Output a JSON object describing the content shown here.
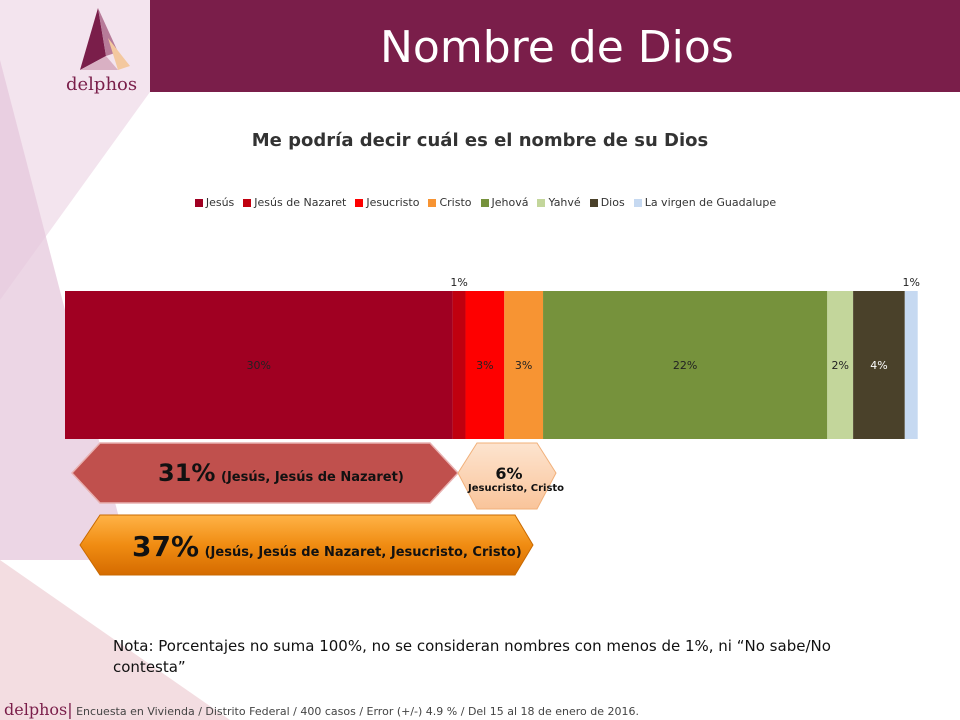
{
  "header": {
    "title": "Nombre de Dios",
    "logo": "delphos"
  },
  "chart_data": {
    "type": "bar",
    "orientation": "horizontal-stacked",
    "title": "Me podría decir cuál es el nombre de su Dios",
    "legend_position": "top",
    "series": [
      {
        "name": "Jesús",
        "value": 30,
        "label": "30%",
        "color": "#a00022"
      },
      {
        "name": "Jesús de Nazaret",
        "value": 1,
        "label": "1%",
        "color": "#c0000f"
      },
      {
        "name": "Jesucristo",
        "value": 3,
        "label": "3%",
        "color": "#fe0000"
      },
      {
        "name": "Cristo",
        "value": 3,
        "label": "3%",
        "color": "#f79433"
      },
      {
        "name": "Jehová",
        "value": 22,
        "label": "22%",
        "color": "#76923c"
      },
      {
        "name": "Yahvé",
        "value": 2,
        "label": "2%",
        "color": "#c3d69b"
      },
      {
        "name": "Dios",
        "value": 4,
        "label": "4%",
        "color": "#4a412a"
      },
      {
        "name": "La virgen de Guadalupe",
        "value": 1,
        "label": "1%",
        "color": "#c6d9f1"
      }
    ]
  },
  "callouts": {
    "group1": {
      "pct": "31%",
      "detail": "(Jesús, Jesús de Nazaret)"
    },
    "group2": {
      "pct": "6%",
      "detail": "Jesucristo, Cristo"
    },
    "group3": {
      "pct": "37%",
      "detail": "(Jesús, Jesús de Nazaret, Jesucristo, Cristo)"
    }
  },
  "note": "Nota: Porcentajes no suma 100%, no se consideran nombres con menos de 1%, ni “No sabe/No contesta”",
  "footer": {
    "logo": "delphos",
    "text": "Encuesta en Vivienda / Distrito Federal / 400 casos / Error (+/-) 4.9 % / Del 15 al 18 de enero de 2016."
  }
}
